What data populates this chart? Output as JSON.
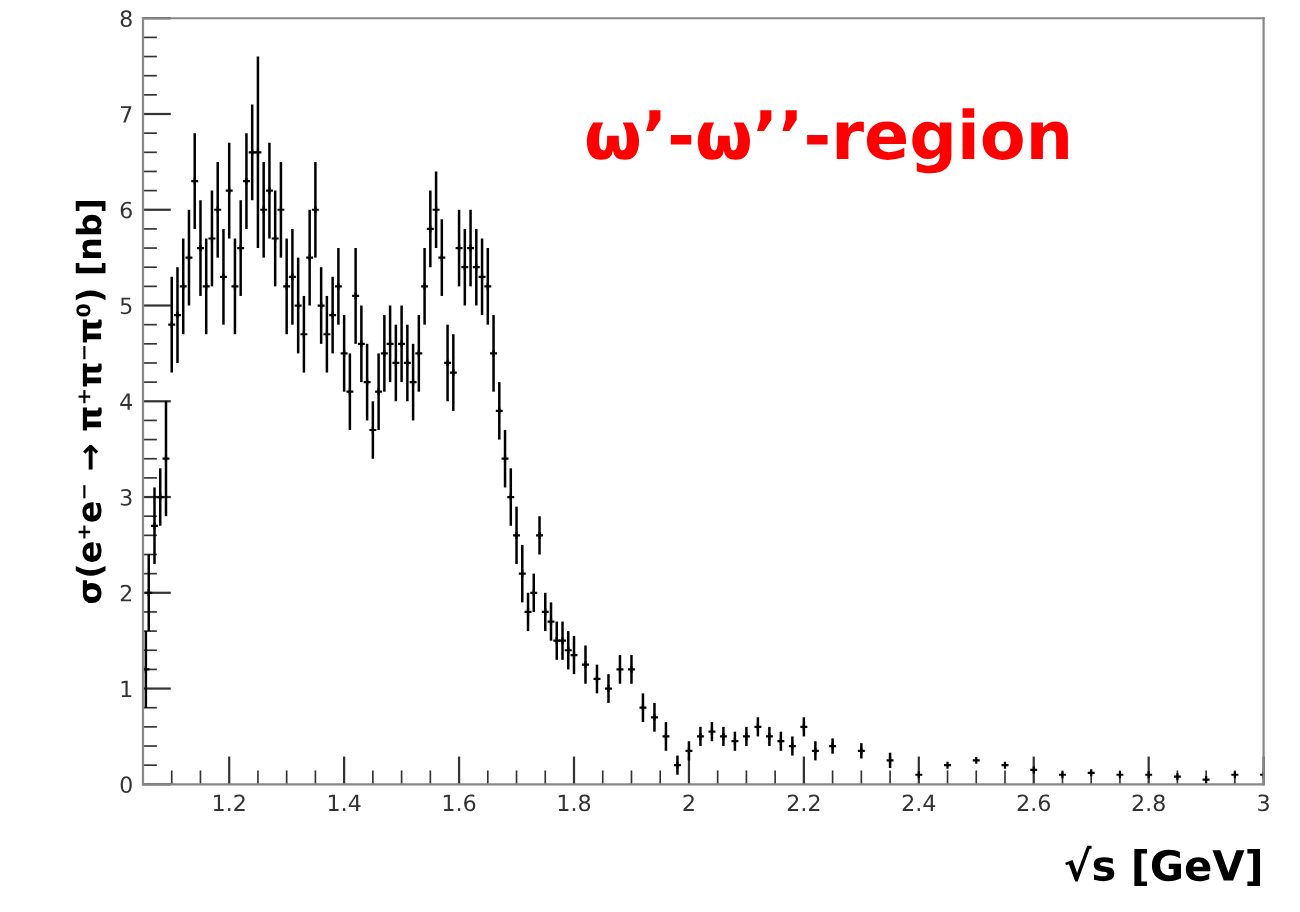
{
  "chart_data": {
    "type": "scatter",
    "xlabel": "√s [GeV]",
    "ylabel": "σ(e⁺e⁻ → π⁺π⁻π⁰) [nb]",
    "annotations": [
      "ω’-ω’’-region"
    ],
    "xlim": [
      1.05,
      3
    ],
    "xticks": [
      1.2,
      1.4,
      1.6,
      1.8,
      2,
      2.2,
      2.4,
      2.6,
      2.8,
      3
    ],
    "ylim": [
      0,
      8
    ],
    "yticks": [
      0,
      1,
      2,
      3,
      4,
      5,
      6,
      7,
      8
    ],
    "marker": "cross",
    "grid": false,
    "series": [
      {
        "color": "#000000",
        "x": [
          1.055,
          1.06,
          1.07,
          1.08,
          1.09,
          1.1,
          1.11,
          1.12,
          1.13,
          1.14,
          1.15,
          1.16,
          1.17,
          1.18,
          1.19,
          1.2,
          1.21,
          1.22,
          1.23,
          1.24,
          1.25,
          1.26,
          1.27,
          1.28,
          1.29,
          1.3,
          1.31,
          1.32,
          1.33,
          1.34,
          1.35,
          1.36,
          1.37,
          1.38,
          1.39,
          1.4,
          1.41,
          1.42,
          1.43,
          1.44,
          1.45,
          1.46,
          1.47,
          1.48,
          1.49,
          1.5,
          1.51,
          1.52,
          1.53,
          1.54,
          1.55,
          1.56,
          1.57,
          1.58,
          1.59,
          1.6,
          1.61,
          1.62,
          1.63,
          1.64,
          1.65,
          1.66,
          1.67,
          1.68,
          1.69,
          1.7,
          1.71,
          1.72,
          1.73,
          1.74,
          1.75,
          1.76,
          1.77,
          1.78,
          1.79,
          1.8,
          1.82,
          1.84,
          1.86,
          1.88,
          1.9,
          1.92,
          1.94,
          1.96,
          1.98,
          2.0,
          2.02,
          2.04,
          2.06,
          2.08,
          2.1,
          2.12,
          2.14,
          2.16,
          2.18,
          2.2,
          2.22,
          2.25,
          2.3,
          2.35,
          2.4,
          2.45,
          2.5,
          2.55,
          2.6,
          2.65,
          2.7,
          2.75,
          2.8,
          2.85,
          2.9,
          2.95,
          3.0
        ],
        "values": [
          1.2,
          2.0,
          2.7,
          3.0,
          3.4,
          4.8,
          4.9,
          5.2,
          5.5,
          6.3,
          5.6,
          5.2,
          5.7,
          6.0,
          5.3,
          6.2,
          5.2,
          5.6,
          6.3,
          6.6,
          6.6,
          6.0,
          6.2,
          5.7,
          6.0,
          5.2,
          5.3,
          5.0,
          4.7,
          5.5,
          6.0,
          5.0,
          4.7,
          4.9,
          5.2,
          4.5,
          4.1,
          5.1,
          4.6,
          4.2,
          3.7,
          4.1,
          4.5,
          4.6,
          4.4,
          4.6,
          4.4,
          4.2,
          4.5,
          5.2,
          5.8,
          6.0,
          5.5,
          4.4,
          4.3,
          5.6,
          5.4,
          5.6,
          5.4,
          5.3,
          5.2,
          4.5,
          3.9,
          3.4,
          3.0,
          2.6,
          2.2,
          1.8,
          2.0,
          2.6,
          1.8,
          1.7,
          1.5,
          1.5,
          1.4,
          1.35,
          1.25,
          1.1,
          1.0,
          1.2,
          1.2,
          0.8,
          0.7,
          0.5,
          0.2,
          0.35,
          0.5,
          0.55,
          0.5,
          0.45,
          0.5,
          0.6,
          0.5,
          0.45,
          0.4,
          0.6,
          0.35,
          0.4,
          0.35,
          0.25,
          0.1,
          0.2,
          0.25,
          0.2,
          0.15,
          0.1,
          0.12,
          0.1,
          0.1,
          0.08,
          0.05,
          0.1,
          0.1
        ],
        "errors": [
          0.4,
          0.4,
          0.4,
          0.3,
          0.6,
          0.5,
          0.5,
          0.5,
          0.5,
          0.5,
          0.5,
          0.5,
          0.5,
          0.5,
          0.5,
          0.5,
          0.5,
          0.5,
          0.5,
          0.5,
          1.0,
          0.5,
          0.5,
          0.5,
          0.5,
          0.5,
          0.5,
          0.5,
          0.4,
          0.5,
          0.5,
          0.4,
          0.4,
          0.4,
          0.4,
          0.4,
          0.4,
          0.5,
          0.4,
          0.4,
          0.3,
          0.4,
          0.4,
          0.4,
          0.4,
          0.4,
          0.4,
          0.4,
          0.4,
          0.4,
          0.4,
          0.4,
          0.4,
          0.4,
          0.4,
          0.4,
          0.4,
          0.4,
          0.4,
          0.4,
          0.4,
          0.4,
          0.3,
          0.3,
          0.3,
          0.3,
          0.3,
          0.2,
          0.2,
          0.2,
          0.2,
          0.2,
          0.2,
          0.2,
          0.2,
          0.2,
          0.2,
          0.15,
          0.15,
          0.15,
          0.15,
          0.15,
          0.15,
          0.15,
          0.1,
          0.1,
          0.1,
          0.1,
          0.1,
          0.1,
          0.1,
          0.1,
          0.1,
          0.1,
          0.1,
          0.1,
          0.1,
          0.08,
          0.08,
          0.08,
          null,
          null,
          null,
          null,
          null,
          null,
          null,
          null,
          null,
          null,
          null,
          null,
          null
        ]
      }
    ]
  }
}
